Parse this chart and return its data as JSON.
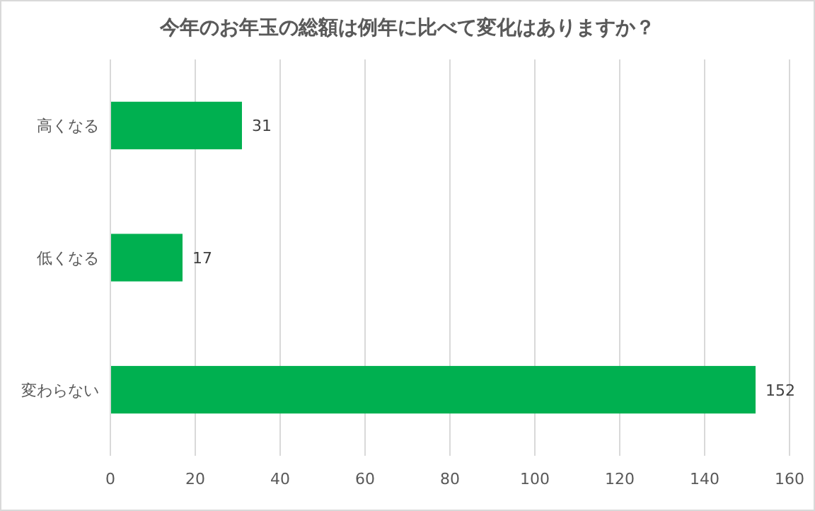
{
  "chart_data": {
    "type": "bar",
    "orientation": "horizontal",
    "title": "今年のお年玉の総額は例年に比べて変化はありますか？",
    "categories": [
      "高くなる",
      "低くなる",
      "変わらない"
    ],
    "values": [
      31,
      17,
      152
    ],
    "color": "#00b050",
    "xlim": [
      0,
      160
    ],
    "xticks": [
      0,
      20,
      40,
      60,
      80,
      100,
      120,
      140,
      160
    ],
    "grid": "x",
    "data_labels": true
  }
}
